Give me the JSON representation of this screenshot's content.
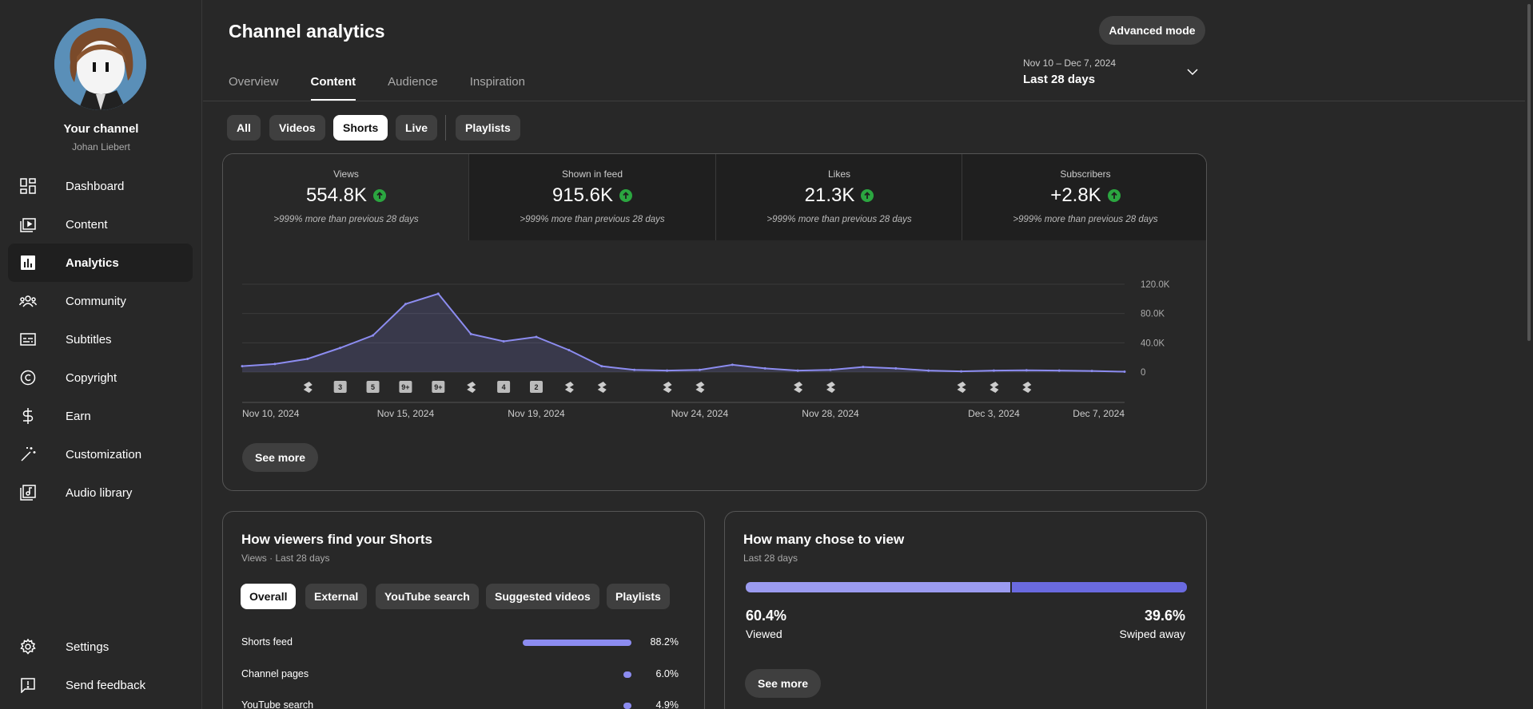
{
  "sidebar": {
    "channel_title": "Your channel",
    "channel_handle": "Johan Liebert",
    "items": [
      {
        "label": "Dashboard",
        "icon": "dashboard-icon"
      },
      {
        "label": "Content",
        "icon": "content-icon"
      },
      {
        "label": "Analytics",
        "icon": "analytics-icon",
        "active": true
      },
      {
        "label": "Community",
        "icon": "community-icon"
      },
      {
        "label": "Subtitles",
        "icon": "subtitles-icon"
      },
      {
        "label": "Copyright",
        "icon": "copyright-icon"
      },
      {
        "label": "Earn",
        "icon": "earn-icon"
      },
      {
        "label": "Customization",
        "icon": "customization-icon"
      },
      {
        "label": "Audio library",
        "icon": "audio-library-icon"
      }
    ],
    "bottom_items": [
      {
        "label": "Settings",
        "icon": "gear-icon"
      },
      {
        "label": "Send feedback",
        "icon": "feedback-icon"
      }
    ]
  },
  "header": {
    "title": "Channel analytics",
    "advanced_mode": "Advanced mode",
    "tabs": [
      "Overview",
      "Content",
      "Audience",
      "Inspiration"
    ],
    "active_tab": "Content",
    "date_range": "Nov 10 – Dec 7, 2024",
    "date_label": "Last 28 days"
  },
  "filters": [
    "All",
    "Videos",
    "Shorts",
    "Live",
    "Playlists"
  ],
  "active_filter": "Shorts",
  "metrics": [
    {
      "label": "Views",
      "value": "554.8K",
      "compare": ">999% more than previous 28 days"
    },
    {
      "label": "Shown in feed",
      "value": "915.6K",
      "compare": ">999% more than previous 28 days"
    },
    {
      "label": "Likes",
      "value": "21.3K",
      "compare": ">999% more than previous 28 days"
    },
    {
      "label": "Subscribers",
      "value": "+2.8K",
      "compare": ">999% more than previous 28 days"
    }
  ],
  "chart_data": {
    "type": "area",
    "title": "",
    "x": [
      "Nov 10",
      "Nov 11",
      "Nov 12",
      "Nov 13",
      "Nov 14",
      "Nov 15",
      "Nov 16",
      "Nov 17",
      "Nov 18",
      "Nov 19",
      "Nov 20",
      "Nov 21",
      "Nov 22",
      "Nov 23",
      "Nov 24",
      "Nov 25",
      "Nov 26",
      "Nov 27",
      "Nov 28",
      "Nov 29",
      "Nov 30",
      "Dec 1",
      "Dec 2",
      "Dec 3",
      "Dec 4",
      "Dec 5",
      "Dec 6",
      "Dec 7"
    ],
    "series": [
      {
        "values": [
          8000,
          11000,
          18000,
          33000,
          50000,
          93000,
          107000,
          52000,
          42000,
          48000,
          30000,
          8000,
          3000,
          2000,
          3000,
          10000,
          5000,
          2000,
          3000,
          7000,
          5000,
          2000,
          1000,
          2000,
          2500,
          2000,
          1500,
          500
        ]
      }
    ],
    "ylim": [
      0,
      120000
    ],
    "yticks": [
      "120.0K",
      "80.0K",
      "40.0K",
      "0"
    ],
    "y_axis_position": "right",
    "xtick_labels": [
      "Nov 10, 2024",
      "Nov 15, 2024",
      "Nov 19, 2024",
      "Nov 24, 2024",
      "Nov 28, 2024",
      "Dec 3, 2024",
      "Dec 7, 2024"
    ],
    "xtick_indices": [
      0,
      5,
      9,
      14,
      18,
      23,
      27
    ],
    "upload_markers": [
      {
        "day": 2,
        "label": "shorts"
      },
      {
        "day": 3,
        "label": "3"
      },
      {
        "day": 4,
        "label": "5"
      },
      {
        "day": 5,
        "label": "9+"
      },
      {
        "day": 6,
        "label": "9+"
      },
      {
        "day": 7,
        "label": "shorts"
      },
      {
        "day": 8,
        "label": "4"
      },
      {
        "day": 9,
        "label": "2"
      },
      {
        "day": 10,
        "label": "shorts"
      },
      {
        "day": 11,
        "label": "shorts"
      },
      {
        "day": 13,
        "label": "shorts"
      },
      {
        "day": 14,
        "label": "shorts"
      },
      {
        "day": 17,
        "label": "shorts"
      },
      {
        "day": 18,
        "label": "shorts"
      },
      {
        "day": 22,
        "label": "shorts"
      },
      {
        "day": 23,
        "label": "shorts"
      },
      {
        "day": 24,
        "label": "shorts"
      }
    ],
    "grid": true,
    "color": "#8c8cf0"
  },
  "main_see_more": "See more",
  "traffic_card": {
    "title": "How viewers find your Shorts",
    "subtitle": "Views · Last 28 days",
    "chips": [
      "Overall",
      "External",
      "YouTube search",
      "Suggested videos",
      "Playlists"
    ],
    "active_chip": "Overall",
    "rows": [
      {
        "label": "Shorts feed",
        "value": "88.2%",
        "pct": 88.2
      },
      {
        "label": "Channel pages",
        "value": "6.0%",
        "pct": 6.0
      },
      {
        "label": "YouTube search",
        "value": "4.9%",
        "pct": 4.9
      }
    ]
  },
  "view_card": {
    "title": "How many chose to view",
    "subtitle": "Last 28 days",
    "viewed_pct": "60.4%",
    "viewed_label": "Viewed",
    "swiped_pct": "39.6%",
    "swiped_label": "Swiped away",
    "see_more": "See more"
  }
}
